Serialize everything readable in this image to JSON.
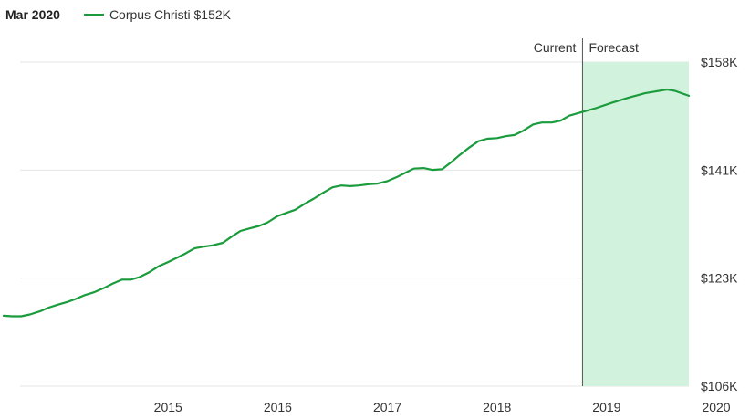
{
  "legend": {
    "date": "Mar 2020",
    "series_label": "Corpus Christi $152K"
  },
  "colors": {
    "line": "#1a9b3c",
    "forecast_fill": "#d1f2dc",
    "grid": "#e6e6e6",
    "divider": "#555555"
  },
  "chart_data": {
    "type": "line",
    "title": "",
    "xlabel": "",
    "ylabel": "",
    "x_ticks": [
      "2015",
      "2016",
      "2017",
      "2018",
      "2019",
      "2020"
    ],
    "y_ticks": [
      "$106K",
      "$123K",
      "$141K",
      "$158K"
    ],
    "ylim": [
      106,
      158
    ],
    "y_unit": "$K",
    "grid": true,
    "annotations": {
      "current": "Current",
      "forecast": "Forecast"
    },
    "forecast_start": 2019.28,
    "forecast_end": 2020.25,
    "series": [
      {
        "name": "Corpus Christi",
        "x": [
          2014.0,
          2014.08,
          2014.16,
          2014.24,
          2014.33,
          2014.41,
          2014.5,
          2014.58,
          2014.66,
          2014.74,
          2014.83,
          2014.91,
          2015.0,
          2015.08,
          2015.16,
          2015.24,
          2015.33,
          2015.41,
          2015.5,
          2015.58,
          2015.66,
          2015.74,
          2015.83,
          2015.91,
          2016.0,
          2016.08,
          2016.16,
          2016.24,
          2016.33,
          2016.41,
          2016.5,
          2016.58,
          2016.66,
          2016.74,
          2016.83,
          2016.91,
          2017.0,
          2017.08,
          2017.16,
          2017.24,
          2017.33,
          2017.41,
          2017.5,
          2017.58,
          2017.66,
          2017.74,
          2017.83,
          2017.91,
          2018.0,
          2018.08,
          2018.16,
          2018.24,
          2018.33,
          2018.41,
          2018.5,
          2018.58,
          2018.66,
          2018.74,
          2018.83,
          2018.91,
          2019.0,
          2019.08,
          2019.16,
          2019.28,
          2019.4,
          2019.55,
          2019.7,
          2019.85,
          2019.95,
          2020.05,
          2020.12,
          2020.25
        ],
        "values": [
          117.3,
          117.2,
          117.2,
          117.5,
          118.0,
          118.6,
          119.1,
          119.5,
          120.0,
          120.6,
          121.1,
          121.7,
          122.5,
          123.1,
          123.1,
          123.5,
          124.3,
          125.2,
          125.9,
          126.6,
          127.3,
          128.1,
          128.4,
          128.6,
          129.0,
          130.0,
          130.9,
          131.3,
          131.7,
          132.3,
          133.3,
          133.8,
          134.3,
          135.2,
          136.1,
          137.0,
          137.9,
          138.2,
          138.1,
          138.2,
          138.4,
          138.5,
          138.9,
          139.5,
          140.2,
          140.9,
          141.0,
          140.7,
          140.8,
          141.9,
          143.1,
          144.2,
          145.3,
          145.7,
          145.8,
          146.1,
          146.3,
          147.0,
          148.0,
          148.3,
          148.3,
          148.6,
          149.4,
          150.0,
          150.6,
          151.5,
          152.3,
          153.0,
          153.3,
          153.6,
          153.4,
          152.6
        ]
      }
    ]
  }
}
